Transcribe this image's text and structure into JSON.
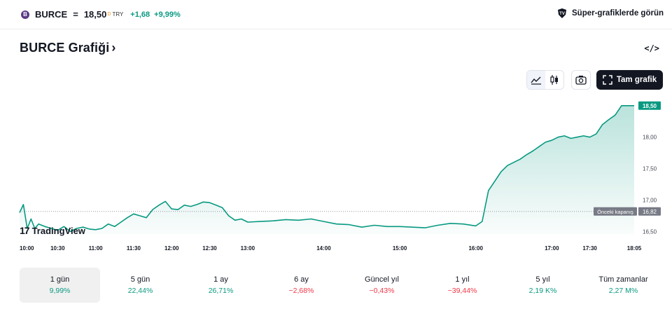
{
  "header": {
    "ticker": "BURCE",
    "separator": "=",
    "price": "18,50",
    "currency": "TRY",
    "change_abs": "+1,68",
    "change_pct": "+9,99%",
    "super_charts_label": "Süper-grafiklerde görün",
    "logo_letter": "B"
  },
  "title": {
    "text": "BURCE Grafiği",
    "chevron": "›"
  },
  "embed_icon": "</>",
  "toolbar": {
    "full_chart_label": "Tam grafik"
  },
  "branding": {
    "mark": "17",
    "name": "TradingView"
  },
  "chart_data": {
    "type": "area",
    "x_tick_labels": [
      "10:00",
      "10:30",
      "11:00",
      "11:30",
      "12:00",
      "12:30",
      "13:00",
      "14:00",
      "15:00",
      "16:00",
      "17:00",
      "17:30",
      "18:05"
    ],
    "y_tick_labels": [
      "18,00",
      "17,50",
      "17,00",
      "16,50"
    ],
    "ylim": [
      16.45,
      18.62
    ],
    "last_price_label": "18,50",
    "last_price": 18.5,
    "prev_close_label": "Önceki kapanış",
    "prev_close_value_label": "16,82",
    "prev_close": 16.82,
    "series": [
      {
        "x": [
          "10:00",
          "10:03",
          "10:06",
          "10:09",
          "10:12",
          "10:15",
          "10:20",
          "10:25",
          "10:30",
          "10:35",
          "10:40",
          "10:45",
          "10:50",
          "10:55",
          "11:00",
          "11:05",
          "11:10",
          "11:15",
          "11:20",
          "11:25",
          "11:30",
          "11:35",
          "11:40",
          "11:45",
          "11:50",
          "11:55",
          "12:00",
          "12:05",
          "12:10",
          "12:15",
          "12:20",
          "12:25",
          "12:30",
          "12:35",
          "12:40",
          "12:45",
          "12:50",
          "12:55",
          "13:00",
          "13:10",
          "13:20",
          "13:30",
          "13:40",
          "13:50",
          "14:00",
          "14:10",
          "14:20",
          "14:30",
          "14:40",
          "14:50",
          "15:00",
          "15:10",
          "15:20",
          "15:30",
          "15:40",
          "15:50",
          "16:00",
          "16:05",
          "16:10",
          "16:15",
          "16:20",
          "16:25",
          "16:30",
          "16:35",
          "16:40",
          "16:45",
          "16:50",
          "16:55",
          "17:00",
          "17:05",
          "17:10",
          "17:15",
          "17:20",
          "17:25",
          "17:30",
          "17:35",
          "17:40",
          "17:45",
          "17:50",
          "17:55",
          "18:00",
          "18:05"
        ],
        "values": [
          16.8,
          16.93,
          16.55,
          16.7,
          16.55,
          16.62,
          16.58,
          16.55,
          16.52,
          16.58,
          16.5,
          16.55,
          16.57,
          16.54,
          16.53,
          16.55,
          16.62,
          16.58,
          16.65,
          16.72,
          16.78,
          16.75,
          16.72,
          16.85,
          16.92,
          16.98,
          16.86,
          16.85,
          16.92,
          16.9,
          16.93,
          16.97,
          16.96,
          16.92,
          16.88,
          16.75,
          16.68,
          16.7,
          16.65,
          16.66,
          16.67,
          16.69,
          16.68,
          16.7,
          16.66,
          16.62,
          16.61,
          16.57,
          16.6,
          16.58,
          16.58,
          16.57,
          16.56,
          16.6,
          16.63,
          16.62,
          16.59,
          16.66,
          17.15,
          17.3,
          17.45,
          17.55,
          17.6,
          17.65,
          17.72,
          17.78,
          17.85,
          17.92,
          17.95,
          18.0,
          18.02,
          17.98,
          18.0,
          18.02,
          18.0,
          18.05,
          18.2,
          18.28,
          18.35,
          18.5,
          18.5,
          18.5
        ]
      }
    ],
    "line_color": "#089981",
    "grid": false,
    "legend": "none"
  },
  "periods": [
    {
      "label": "1 gün",
      "value": "9,99%",
      "dir": "pos",
      "active": true
    },
    {
      "label": "5 gün",
      "value": "22,44%",
      "dir": "pos",
      "active": false
    },
    {
      "label": "1 ay",
      "value": "26,71%",
      "dir": "pos",
      "active": false
    },
    {
      "label": "6 ay",
      "value": "−2,68%",
      "dir": "neg",
      "active": false
    },
    {
      "label": "Güncel yıl",
      "value": "−0,43%",
      "dir": "neg",
      "active": false
    },
    {
      "label": "1 yıl",
      "value": "−39,44%",
      "dir": "neg",
      "active": false
    },
    {
      "label": "5 yıl",
      "value": "2,19 K%",
      "dir": "pos",
      "active": false
    },
    {
      "label": "Tüm zamanlar",
      "value": "2,27 M%",
      "dir": "pos",
      "active": false
    }
  ],
  "colors": {
    "positive": "#089981",
    "negative": "#f23645",
    "accent_dark": "#131722"
  }
}
